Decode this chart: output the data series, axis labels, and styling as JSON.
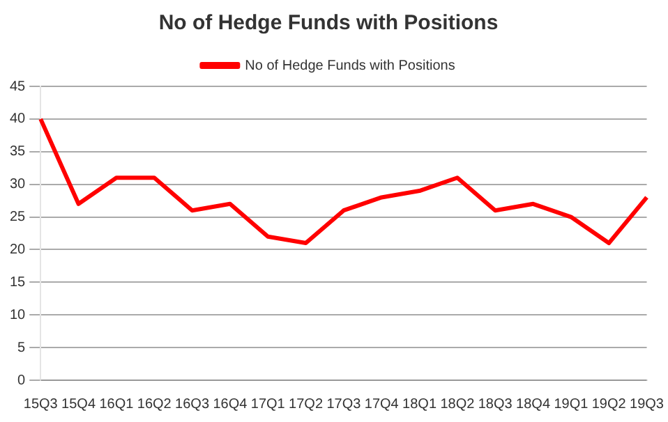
{
  "chart_data": {
    "type": "line",
    "title": "No of Hedge Funds with Positions",
    "categories": [
      "15Q3",
      "15Q4",
      "16Q1",
      "16Q2",
      "16Q3",
      "16Q4",
      "17Q1",
      "17Q2",
      "17Q3",
      "17Q4",
      "18Q1",
      "18Q2",
      "18Q3",
      "18Q4",
      "19Q1",
      "19Q2",
      "19Q3"
    ],
    "series": [
      {
        "name": "No of Hedge Funds with Positions",
        "color": "#ff0000",
        "values": [
          40,
          27,
          31,
          31,
          26,
          27,
          22,
          21,
          26,
          28,
          29,
          31,
          26,
          27,
          25,
          21,
          28
        ]
      }
    ],
    "ylim": [
      0,
      45
    ],
    "yticks": [
      0,
      5,
      10,
      15,
      20,
      25,
      30,
      35,
      40,
      45
    ],
    "grid": "y",
    "legend": "top",
    "marker": "none"
  }
}
